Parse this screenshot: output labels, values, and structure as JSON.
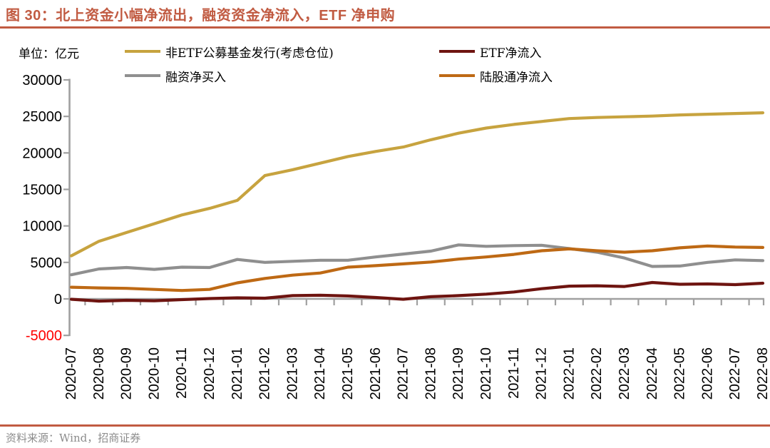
{
  "title": "图 30：北上资金小幅净流出，融资资金净流入，ETF 净申购",
  "unit_label": "单位：亿元",
  "source_label": "资料来源：Wind，招商证券",
  "colors": {
    "title_accent": "#C15B42",
    "rule": "#C15B42",
    "axis": "#A0A0A0",
    "tick_label": "#000000",
    "negative_tick_label": "#FF0000",
    "source_text": "#8C8C8C"
  },
  "chart_data": {
    "type": "line",
    "title": "北上资金小幅净流出，融资资金净流入，ETF 净申购",
    "ylabel": "亿元",
    "ylim": [
      -5000,
      30000
    ],
    "yticks": [
      30000,
      25000,
      20000,
      15000,
      10000,
      5000,
      0,
      -5000
    ],
    "grid": false,
    "legend_position": "top",
    "x": [
      "2020-07",
      "2020-08",
      "2020-09",
      "2020-10",
      "2020-11",
      "2020-12",
      "2021-01",
      "2021-02",
      "2021-03",
      "2021-04",
      "2021-05",
      "2021-06",
      "2021-07",
      "2021-08",
      "2021-09",
      "2021-10",
      "2021-11",
      "2021-12",
      "2022-01",
      "2022-02",
      "2022-03",
      "2022-04",
      "2022-05",
      "2022-06",
      "2022-07",
      "2022-08"
    ],
    "series": [
      {
        "name": "非ETF公募基金发行(考虑仓位)",
        "color": "#C7A33F",
        "values": [
          5900,
          7900,
          9100,
          10300,
          11500,
          12400,
          13500,
          16900,
          17700,
          18600,
          19500,
          20200,
          20800,
          21800,
          22700,
          23400,
          23900,
          24300,
          24700,
          24850,
          24950,
          25050,
          25200,
          25300,
          25400,
          25500
        ]
      },
      {
        "name": "ETF净流入",
        "color": "#6E1410",
        "values": [
          -50,
          -300,
          -200,
          -250,
          -100,
          50,
          150,
          100,
          450,
          500,
          400,
          200,
          -50,
          300,
          450,
          650,
          950,
          1400,
          1750,
          1800,
          1700,
          2250,
          2000,
          2050,
          1950,
          2150
        ]
      },
      {
        "name": "融资净买入",
        "color": "#8F8F8F",
        "values": [
          3300,
          4100,
          4300,
          4050,
          4350,
          4300,
          5400,
          5000,
          5150,
          5300,
          5300,
          5750,
          6150,
          6550,
          7400,
          7200,
          7300,
          7350,
          6900,
          6400,
          5600,
          4450,
          4500,
          5000,
          5350,
          5250
        ]
      },
      {
        "name": "陆股通净流入",
        "color": "#BE6914",
        "values": [
          1600,
          1500,
          1450,
          1300,
          1150,
          1300,
          2200,
          2800,
          3250,
          3550,
          4350,
          4550,
          4800,
          5050,
          5450,
          5750,
          6100,
          6600,
          6850,
          6600,
          6400,
          6600,
          7000,
          7250,
          7100,
          7050
        ]
      }
    ]
  }
}
